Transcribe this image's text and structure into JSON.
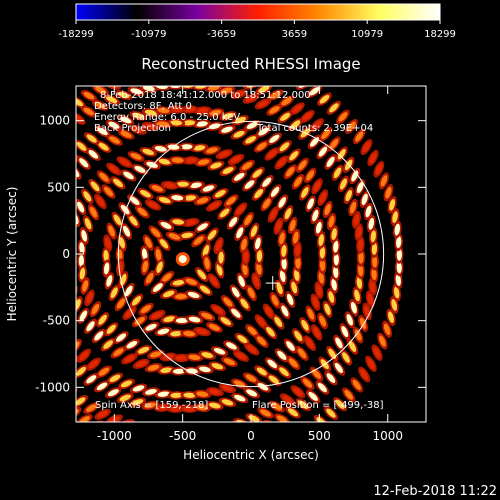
{
  "colorbar": {
    "tick_labels": [
      "-18299",
      "-10979",
      "-3659",
      "3659",
      "10979",
      "18299"
    ],
    "range": [
      -18299,
      18299
    ],
    "colormap": [
      "#0000ff",
      "#000000",
      "#7a00a0",
      "#ff2000",
      "#ff8800",
      "#ffff60",
      "#ffffff"
    ]
  },
  "chart_data": {
    "type": "heatmap",
    "title": "Reconstructed RHESSI Image",
    "xlabel": "Heliocentric X (arcsec)",
    "ylabel": "Heliocentric Y (arcsec)",
    "xlim": [
      -1280,
      1280
    ],
    "ylim": [
      -1260,
      1260
    ],
    "xticks": [
      -1000,
      -500,
      0,
      500,
      1000
    ],
    "yticks": [
      -1000,
      -500,
      0,
      500,
      1000
    ],
    "xtick_labels": [
      "-1000",
      "-500",
      "0",
      "500",
      "1000"
    ],
    "ytick_labels": [
      "-1000",
      "-500",
      "0",
      "500",
      "1000"
    ],
    "annotations": [
      "8-Feb-2018 18:41:12.000 to 18:51:12.000",
      "Detectors: 8F, Att 0",
      "Energy Range: 6.0 - 25.0 keV",
      "Back Projection",
      "Total counts: 2.39E+04"
    ],
    "spin_axis_label": "Spin Axis = [159,-218]",
    "flare_position_label": "Flare Position = [-499,-38]",
    "spin_axis": [
      159,
      -218
    ],
    "flare_position": [
      -499,
      -38
    ],
    "solar_limb": {
      "center": [
        0,
        0
      ],
      "radius_arcsec": 970
    }
  },
  "timestamp": "12-Feb-2018 11:22"
}
